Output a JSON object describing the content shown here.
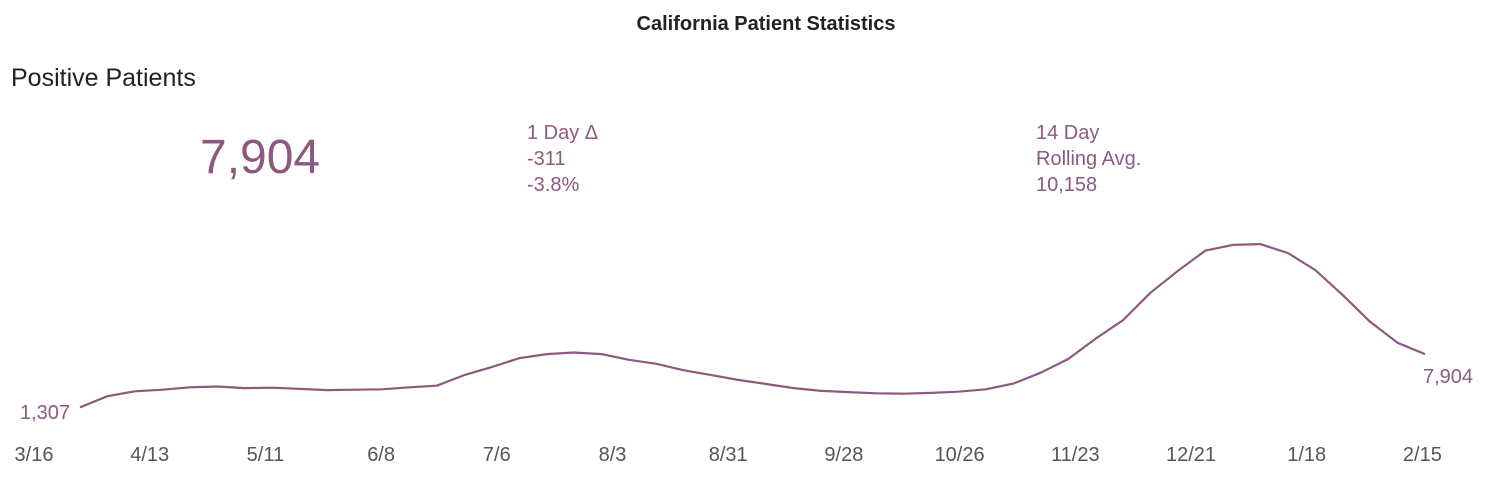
{
  "title": "California Patient Statistics",
  "subtitle": "Positive Patients",
  "kpis": {
    "current": "7,904",
    "one_day": {
      "label": "1 Day Δ",
      "change": "-311",
      "pct": "-3.8%"
    },
    "rolling": {
      "label1": "14 Day",
      "label2": "Rolling Avg.",
      "value": "10,158"
    }
  },
  "colors": {
    "series": "#8c5a80",
    "text": "#222222",
    "ticks": "#555555"
  },
  "chart_data": {
    "type": "line",
    "xlabel": "",
    "ylabel": "",
    "x_ticks": [
      "3/16",
      "4/13",
      "5/11",
      "6/8",
      "7/6",
      "8/3",
      "8/31",
      "9/28",
      "10/26",
      "11/23",
      "12/21",
      "1/18",
      "2/15"
    ],
    "start_label": "1,307",
    "end_label": "7,904",
    "ylim": [
      0,
      23000
    ],
    "grid": false,
    "series": [
      {
        "x": [
          "3/16",
          "3/23",
          "3/30",
          "4/6",
          "4/13",
          "4/20",
          "4/27",
          "5/4",
          "5/11",
          "5/18",
          "5/25",
          "6/1",
          "6/8",
          "6/15",
          "6/22",
          "6/29",
          "7/6",
          "7/13",
          "7/20",
          "7/27",
          "8/3",
          "8/10",
          "8/17",
          "8/24",
          "8/31",
          "9/7",
          "9/14",
          "9/21",
          "9/28",
          "10/5",
          "10/12",
          "10/19",
          "10/26",
          "11/2",
          "11/9",
          "11/16",
          "11/23",
          "11/30",
          "12/7",
          "12/14",
          "12/21",
          "12/28",
          "1/4",
          "1/11",
          "1/18",
          "1/25",
          "2/1",
          "2/8",
          "2/15",
          "2/21"
        ],
        "values": [
          1307,
          2700,
          3300,
          3500,
          3800,
          3900,
          3700,
          3750,
          3600,
          3450,
          3500,
          3550,
          3800,
          4000,
          5300,
          6300,
          7400,
          7900,
          8100,
          7900,
          7200,
          6700,
          5900,
          5300,
          4700,
          4200,
          3700,
          3350,
          3200,
          3050,
          3000,
          3100,
          3250,
          3550,
          4250,
          5600,
          7300,
          9800,
          12100,
          15500,
          18200,
          20700,
          21400,
          21500,
          20400,
          18300,
          15200,
          11900,
          9300,
          7904
        ]
      }
    ]
  }
}
